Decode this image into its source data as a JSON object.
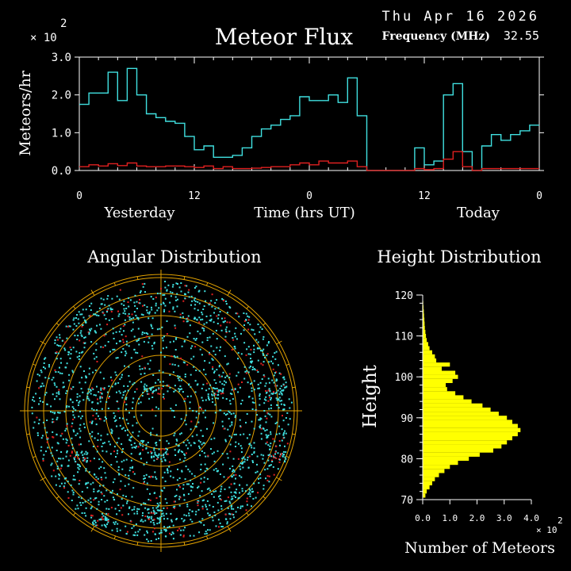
{
  "header": {
    "date": "Thu Apr 16 2026",
    "frequency_label": "Frequency (MHz)",
    "frequency_value": "32.55"
  },
  "colors": {
    "background": "#000000",
    "foreground": "#ffffff",
    "flux_total": "#40e0e0",
    "flux_red": "#e02020",
    "height_bars": "#ffff00",
    "polar_rings": "#e0a000",
    "polar_dots_cyan": "#40e0e0",
    "polar_dots_red": "#e02020"
  },
  "chart_data": [
    {
      "type": "line",
      "title": "Meteor Flux",
      "ylabel": "Meteors/hr",
      "y_multiplier": "× 10",
      "y_multiplier_exp": "2",
      "xlabel": "Time (hrs UT)",
      "x_group_labels": [
        "Yesterday",
        "Today"
      ],
      "x_tick_labels": [
        "0",
        "12",
        "0",
        "12",
        "0"
      ],
      "y_tick_labels": [
        "0.0",
        "1.0",
        "2.0",
        "3.0"
      ],
      "ylim": [
        0,
        3.0
      ],
      "xlim": [
        0,
        48
      ],
      "series": [
        {
          "color": "#40e0e0",
          "step": true,
          "values": [
            1.75,
            2.05,
            2.05,
            2.6,
            1.85,
            2.7,
            2.0,
            1.5,
            1.4,
            1.3,
            1.25,
            0.9,
            0.55,
            0.65,
            0.35,
            0.35,
            0.4,
            0.6,
            0.9,
            1.1,
            1.2,
            1.35,
            1.45,
            1.95,
            1.85,
            1.85,
            2.0,
            1.8,
            2.45,
            1.45,
            0.0,
            0.0,
            0.0,
            0.0,
            0.0,
            0.6,
            0.15,
            0.25,
            2.0,
            2.3,
            0.5,
            0.0,
            0.65,
            0.95,
            0.8,
            0.95,
            1.05,
            1.2
          ]
        },
        {
          "color": "#e02020",
          "step": true,
          "values": [
            0.1,
            0.15,
            0.12,
            0.18,
            0.13,
            0.2,
            0.12,
            0.1,
            0.1,
            0.12,
            0.12,
            0.1,
            0.08,
            0.12,
            0.05,
            0.1,
            0.05,
            0.05,
            0.06,
            0.08,
            0.1,
            0.1,
            0.15,
            0.2,
            0.15,
            0.25,
            0.2,
            0.2,
            0.25,
            0.1,
            0.0,
            0.0,
            0.0,
            0.0,
            0.0,
            0.05,
            0.02,
            0.05,
            0.3,
            0.5,
            0.1,
            0.0,
            0.05,
            0.05,
            0.05,
            0.05,
            0.05,
            0.05
          ]
        }
      ]
    },
    {
      "type": "scatter",
      "title": "Angular Distribution"
    },
    {
      "type": "bar",
      "orientation": "horizontal",
      "title": "Height Distribution",
      "ylabel": "Height",
      "xlabel": "Number of Meteors",
      "x_multiplier": "× 10",
      "x_multiplier_exp": "2",
      "x_tick_labels": [
        "0.0",
        "1.0",
        "2.0",
        "3.0",
        "4.0"
      ],
      "y_tick_labels": [
        "70",
        "80",
        "90",
        "100",
        "110",
        "120"
      ],
      "xlim": [
        0,
        4.0
      ],
      "ylim": [
        70,
        120
      ],
      "heights": [
        71,
        72,
        73,
        74,
        75,
        76,
        77,
        78,
        79,
        80,
        81,
        82,
        83,
        84,
        85,
        86,
        87,
        88,
        89,
        90,
        91,
        92,
        93,
        94,
        95,
        96,
        97,
        98,
        99,
        100,
        101,
        102,
        103,
        104,
        105,
        106,
        107,
        108,
        109,
        110,
        111,
        112,
        113,
        114,
        115,
        116,
        117,
        118,
        119
      ],
      "values": [
        0.1,
        0.15,
        0.25,
        0.35,
        0.45,
        0.6,
        0.8,
        1.0,
        1.3,
        1.7,
        2.1,
        2.6,
        2.9,
        3.1,
        3.3,
        3.5,
        3.6,
        3.5,
        3.3,
        3.1,
        2.8,
        2.5,
        2.2,
        1.8,
        1.5,
        1.2,
        0.9,
        0.85,
        1.1,
        1.3,
        1.2,
        0.7,
        1.0,
        0.5,
        0.45,
        0.35,
        0.25,
        0.2,
        0.15,
        0.12,
        0.1,
        0.08,
        0.07,
        0.06,
        0.05,
        0.04,
        0.03,
        0.02,
        0.01
      ]
    }
  ]
}
